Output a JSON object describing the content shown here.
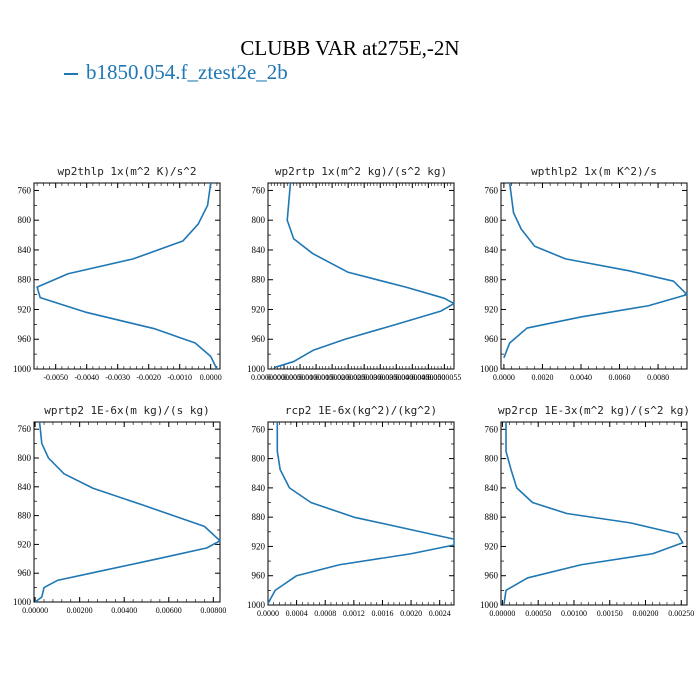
{
  "title": "CLUBB VAR at275E,-2N",
  "legend": "b1850.054.f_ztest2e_2b",
  "line_color": "#1f77b4",
  "chart_data": [
    {
      "type": "line",
      "title": "wp2thlp  1x(m^2 K)/s^2",
      "xlim": [
        -0.0057,
        0.0003
      ],
      "ylim": [
        1000,
        750
      ],
      "xticks": [
        -0.005,
        -0.004,
        -0.003,
        -0.002,
        -0.001,
        0.0
      ],
      "xtick_labels": [
        "-0.0050",
        "-0.0040",
        "-0.0030",
        "-0.0020",
        "-0.0010",
        "0.0000"
      ],
      "yticks": [
        760,
        800,
        840,
        880,
        920,
        960,
        1000
      ],
      "ytick_labels": [
        "760",
        "800",
        "840",
        "880",
        "920",
        "960",
        "1000"
      ],
      "series": [
        {
          "x": [
            0.0,
            -0.0001,
            -0.0004,
            -0.0009,
            -0.0025,
            -0.0046,
            -0.0056,
            -0.0055,
            -0.004,
            -0.0018,
            -0.0005,
            0.0,
            0.0002
          ],
          "y": [
            750,
            780,
            805,
            828,
            852,
            872,
            890,
            904,
            924,
            946,
            965,
            983,
            1000
          ]
        }
      ]
    },
    {
      "type": "line",
      "title": "wp2rtp  1x(m^2 kg)/(s^2 kg)",
      "xlim": [
        0.0,
        5.8e-06
      ],
      "ylim": [
        1000,
        750
      ],
      "xticks": [
        0.0,
        5e-07,
        1e-06,
        1.5e-06,
        2e-06,
        2.5e-06,
        3e-06,
        3.5e-06,
        4e-06,
        4.5e-06,
        5e-06,
        5.5e-06
      ],
      "xtick_labels": [
        "0.0000000",
        "0.0000005",
        "0.0000010",
        "0.0000015",
        "0.0000020",
        "0.0000025",
        "0.0000030",
        "0.0000035",
        "0.0000040",
        "0.0000045",
        "0.0000050",
        "0.0000055"
      ],
      "yticks": [
        760,
        800,
        840,
        880,
        920,
        960,
        1000
      ],
      "ytick_labels": [
        "760",
        "800",
        "840",
        "880",
        "920",
        "960",
        "1000"
      ],
      "series": [
        {
          "x": [
            7e-07,
            6e-07,
            8e-07,
            1.4e-06,
            2.5e-06,
            4.3e-06,
            5.5e-06,
            5.8e-06,
            5.4e-06,
            4e-06,
            2.4e-06,
            1.4e-06,
            8e-07,
            2e-07
          ],
          "y": [
            750,
            800,
            825,
            845,
            870,
            890,
            905,
            912,
            922,
            940,
            960,
            975,
            990,
            998
          ]
        }
      ]
    },
    {
      "type": "line",
      "title": "wpthlp2  1x(m K^2)/s",
      "xlim": [
        -0.00015,
        0.0095
      ],
      "ylim": [
        1000,
        750
      ],
      "xticks": [
        0.0,
        0.002,
        0.004,
        0.006,
        0.008
      ],
      "xtick_labels": [
        "0.0000",
        "0.0020",
        "0.0040",
        "0.0060",
        "0.0080"
      ],
      "yticks": [
        760,
        800,
        840,
        880,
        920,
        960,
        1000
      ],
      "ytick_labels": [
        "760",
        "800",
        "840",
        "880",
        "920",
        "960",
        "1000"
      ],
      "series": [
        {
          "x": [
            0.0003,
            0.0005,
            0.0009,
            0.0016,
            0.0032,
            0.0065,
            0.0088,
            0.0095,
            0.0075,
            0.004,
            0.0012,
            0.0003,
            0.0
          ],
          "y": [
            750,
            790,
            812,
            835,
            852,
            868,
            882,
            900,
            915,
            930,
            945,
            965,
            985
          ]
        }
      ]
    },
    {
      "type": "line",
      "title": "wprtp2  1E-6x(m kg)/(s kg)",
      "xlim": [
        -5e-05,
        0.0083
      ],
      "ylim": [
        1000,
        750
      ],
      "xticks": [
        0.0,
        0.002,
        0.004,
        0.006,
        0.008
      ],
      "xtick_labels": [
        "0.00000",
        "0.00200",
        "0.00400",
        "0.00600",
        "0.00800"
      ],
      "yticks": [
        760,
        800,
        840,
        880,
        920,
        960,
        1000
      ],
      "ytick_labels": [
        "760",
        "800",
        "840",
        "880",
        "920",
        "960",
        "1000"
      ],
      "series": [
        {
          "x": [
            0.0002,
            0.0003,
            0.0006,
            0.0013,
            0.0026,
            0.0048,
            0.0076,
            0.0083,
            0.0077,
            0.0055,
            0.0025,
            0.001,
            0.0004,
            0.0003,
            0.0
          ],
          "y": [
            750,
            780,
            800,
            822,
            842,
            865,
            895,
            915,
            925,
            940,
            960,
            970,
            980,
            993,
            1000
          ]
        }
      ]
    },
    {
      "type": "line",
      "title": "rcp2  1E-6x(kg^2)/(kg^2)",
      "xlim": [
        0.0,
        0.0026
      ],
      "ylim": [
        1000,
        750
      ],
      "xticks": [
        0.0,
        0.0004,
        0.0008,
        0.0012,
        0.0016,
        0.002,
        0.0024
      ],
      "xtick_labels": [
        "0.0000",
        "0.0004",
        "0.0008",
        "0.0012",
        "0.0016",
        "0.0020",
        "0.0024"
      ],
      "yticks": [
        760,
        800,
        840,
        880,
        920,
        960,
        1000
      ],
      "ytick_labels": [
        "760",
        "800",
        "840",
        "880",
        "920",
        "960",
        "1000"
      ],
      "series": [
        {
          "x": [
            0.00013,
            0.00013,
            0.00017,
            0.0003,
            0.0006,
            0.0012,
            0.0019,
            0.0026,
            0.0026,
            0.002,
            0.001,
            0.0004,
            0.0001,
            0.0
          ],
          "y": [
            750,
            790,
            815,
            840,
            860,
            880,
            895,
            910,
            918,
            930,
            945,
            960,
            980,
            998
          ]
        }
      ]
    },
    {
      "type": "line",
      "title": "wp2rcp  1E-3x(m^2 kg)/(s^2 kg)",
      "xlim": [
        -2e-05,
        0.00258
      ],
      "ylim": [
        1000,
        750
      ],
      "xticks": [
        0.0,
        0.0005,
        0.001,
        0.0015,
        0.002,
        0.0025
      ],
      "xtick_labels": [
        "0.00000",
        "0.00050",
        "0.00100",
        "0.00150",
        "0.00200",
        "0.00250"
      ],
      "yticks": [
        760,
        800,
        840,
        880,
        920,
        960,
        1000
      ],
      "ytick_labels": [
        "760",
        "800",
        "840",
        "880",
        "920",
        "960",
        "1000"
      ],
      "series": [
        {
          "x": [
            5e-05,
            5e-05,
            0.00012,
            0.0002,
            0.00042,
            0.0009,
            0.0018,
            0.00245,
            0.00252,
            0.0021,
            0.0011,
            0.00035,
            5e-05,
            2e-05
          ],
          "y": [
            750,
            790,
            815,
            840,
            860,
            875,
            888,
            903,
            915,
            930,
            945,
            963,
            980,
            1000
          ]
        }
      ]
    }
  ]
}
